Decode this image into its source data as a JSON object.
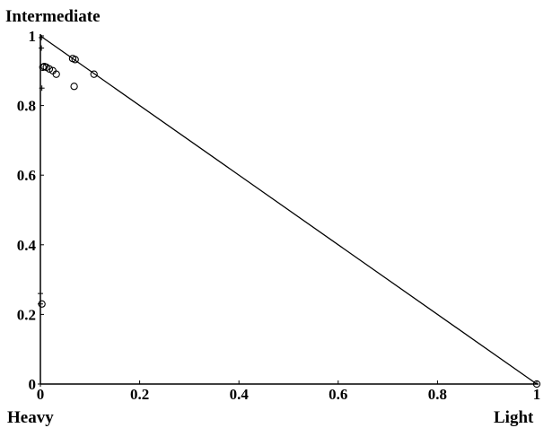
{
  "chart_data": {
    "type": "scatter",
    "title": "",
    "corner_labels": {
      "top": "Intermediate",
      "bottom_left": "Heavy",
      "bottom_right": "Light"
    },
    "xlim": [
      0,
      1
    ],
    "ylim": [
      0,
      1
    ],
    "x_ticks": [
      "0",
      "0.2",
      "0.4",
      "0.6",
      "0.8",
      "1"
    ],
    "y_ticks": [
      "0",
      "0.2",
      "0.4",
      "0.6",
      "0.8",
      "1"
    ],
    "grid": false,
    "reference_line": {
      "x": [
        0,
        1
      ],
      "y": [
        1,
        0
      ]
    },
    "series": [
      {
        "marker": "circle",
        "points": [
          [
            0.005,
            0.91
          ],
          [
            0.008,
            0.912
          ],
          [
            0.012,
            0.91
          ],
          [
            0.018,
            0.905
          ],
          [
            0.025,
            0.9
          ],
          [
            0.032,
            0.89
          ],
          [
            0.065,
            0.935
          ],
          [
            0.07,
            0.932
          ],
          [
            0.068,
            0.855
          ],
          [
            0.108,
            0.89
          ],
          [
            0.003,
            0.23
          ],
          [
            1.0,
            0.0
          ]
        ]
      },
      {
        "marker": "plus",
        "points": [
          [
            0.002,
            0.995
          ],
          [
            0.002,
            0.965
          ],
          [
            0.003,
            0.85
          ],
          [
            0.0,
            0.26
          ],
          [
            0.0,
            0.23
          ],
          [
            0.0,
            0.0
          ]
        ]
      }
    ]
  }
}
